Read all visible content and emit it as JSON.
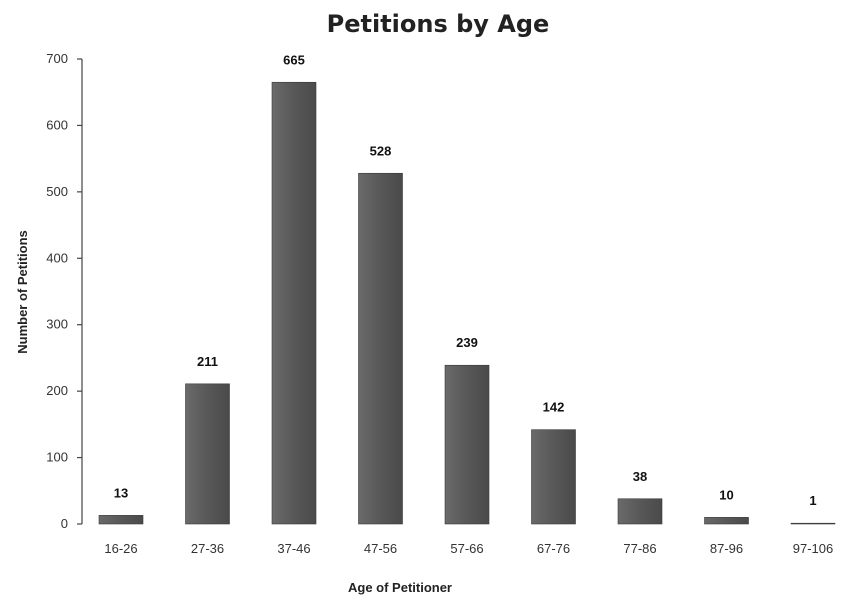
{
  "chart_data": {
    "type": "bar",
    "title": "Petitions by Age",
    "xlabel": "Age of Petitioner",
    "ylabel": "Number of Petitions",
    "categories": [
      "16-26",
      "27-36",
      "37-46",
      "47-56",
      "57-66",
      "67-76",
      "77-86",
      "87-96",
      "97-106"
    ],
    "values": [
      13,
      211,
      665,
      528,
      239,
      142,
      38,
      10,
      1
    ],
    "ylim": [
      0,
      700
    ],
    "yticks": [
      0,
      100,
      200,
      300,
      400,
      500,
      600,
      700
    ],
    "grid": false,
    "legend": "none",
    "bar_color": "#555555"
  }
}
